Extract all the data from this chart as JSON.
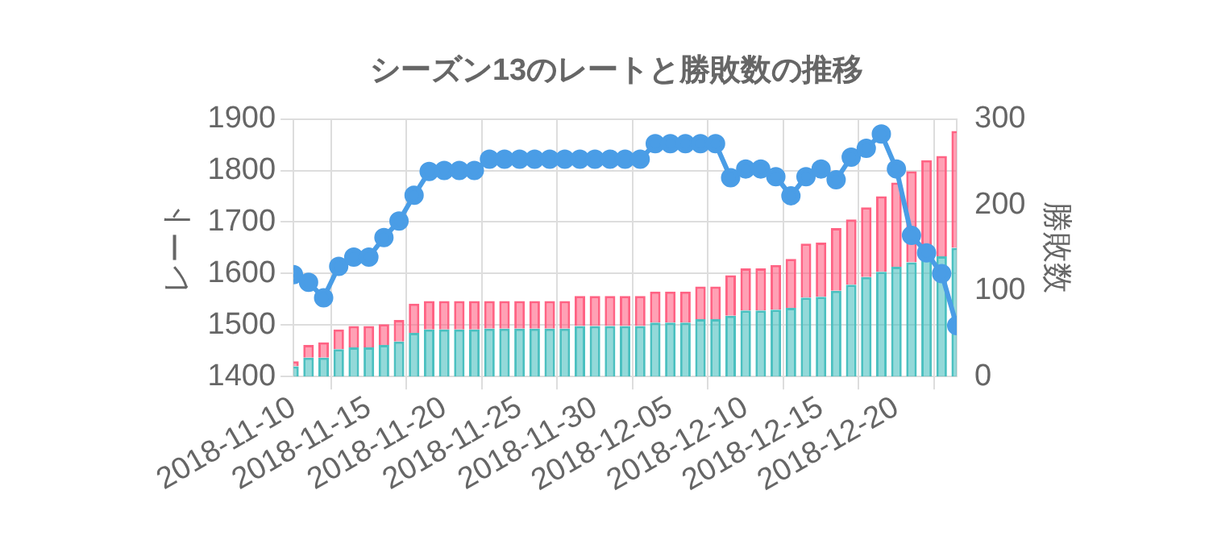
{
  "chart_data": {
    "type": "bar",
    "title": "シーズン13のレートと勝敗数の推移",
    "ylabel": "レート",
    "y2label": "勝敗数",
    "x": [
      "2018-11-10",
      "2018-11-11",
      "2018-11-12",
      "2018-11-13",
      "2018-11-14",
      "2018-11-15",
      "2018-11-16",
      "2018-11-17",
      "2018-11-18",
      "2018-11-19",
      "2018-11-20",
      "2018-11-21",
      "2018-11-22",
      "2018-11-23",
      "2018-11-24",
      "2018-11-25",
      "2018-11-26",
      "2018-11-27",
      "2018-11-28",
      "2018-11-29",
      "2018-11-30",
      "2018-12-01",
      "2018-12-02",
      "2018-12-03",
      "2018-12-04",
      "2018-12-05",
      "2018-12-06",
      "2018-12-07",
      "2018-12-08",
      "2018-12-09",
      "2018-12-10",
      "2018-12-11",
      "2018-12-12",
      "2018-12-13",
      "2018-12-14",
      "2018-12-15",
      "2018-12-16",
      "2018-12-17",
      "2018-12-18",
      "2018-12-19",
      "2018-12-20",
      "2018-12-21",
      "2018-12-22",
      "2018-12-23",
      "2018-12-24"
    ],
    "series": [
      {
        "type": "line",
        "axis": "y",
        "color": "#4a9de6",
        "values": [
          1598,
          1583,
          1553,
          1614,
          1632,
          1632,
          1670,
          1702,
          1752,
          1798,
          1800,
          1800,
          1800,
          1822,
          1822,
          1822,
          1822,
          1822,
          1822,
          1822,
          1822,
          1822,
          1822,
          1822,
          1852,
          1852,
          1852,
          1852,
          1852,
          1786,
          1803,
          1803,
          1788,
          1751,
          1788,
          1803,
          1782,
          1826,
          1843,
          1871,
          1803,
          1674,
          1640,
          1600,
          1499
        ]
      },
      {
        "axis": "y2",
        "color": "#4bc0c0",
        "values": [
          12,
          22,
          22,
          32,
          34,
          34,
          37,
          41,
          51,
          55,
          55,
          55,
          55,
          56,
          56,
          56,
          56,
          56,
          56,
          59,
          59,
          59,
          59,
          59,
          63,
          63,
          63,
          67,
          67,
          71,
          77,
          77,
          78,
          80,
          92,
          93,
          100,
          107,
          116,
          122,
          128,
          133,
          139,
          140,
          150
        ]
      },
      {
        "axis": "y2",
        "color": "#ff6384",
        "values": [
          6,
          15,
          18,
          23,
          25,
          25,
          24,
          25,
          34,
          33,
          33,
          33,
          33,
          32,
          32,
          32,
          32,
          32,
          32,
          35,
          35,
          35,
          35,
          35,
          36,
          36,
          36,
          38,
          38,
          47,
          49,
          49,
          52,
          57,
          63,
          63,
          73,
          76,
          81,
          88,
          98,
          106,
          113,
          117,
          136
        ]
      }
    ],
    "stacked": true,
    "marker": "circle",
    "line_style": "solid",
    "xlim": [
      "2018-11-10",
      "2018-12-24"
    ],
    "xticks": [
      "2018-11-10",
      "2018-11-15",
      "2018-11-20",
      "2018-11-25",
      "2018-11-30",
      "2018-12-05",
      "2018-12-10",
      "2018-12-15",
      "2018-12-20"
    ],
    "ylim": [
      1400,
      1900
    ],
    "yticks": [
      1400,
      1500,
      1600,
      1700,
      1800,
      1900
    ],
    "y2lim": [
      0,
      300
    ],
    "y2ticks": [
      0,
      100,
      200,
      300
    ],
    "grid": true,
    "legend": false
  }
}
